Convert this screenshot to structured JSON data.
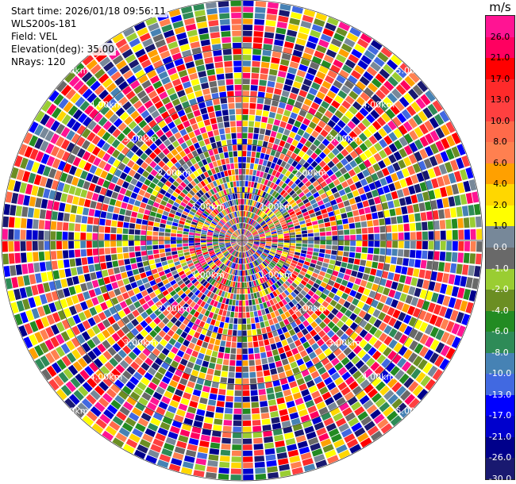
{
  "info": {
    "start_time": "Start time: 2026/01/18 09:56:11",
    "station": "WLS200s-181",
    "field": "Field: VEL",
    "elevation": "Elevation(deg): 35.00",
    "nrays": "NRays: 120"
  },
  "colorbar": {
    "unit": "m/s",
    "ticks": [
      "26.0",
      "21.0",
      "17.0",
      "13.0",
      "10.0",
      "8.0",
      "6.0",
      "4.0",
      "2.0",
      "1.0",
      "0.0",
      "-1.0",
      "-2.0",
      "-4.0",
      "-6.0",
      "-8.0",
      "-10.0",
      "-13.0",
      "-17.0",
      "-21.0",
      "-26.0",
      "-30.0"
    ],
    "colors": [
      "#ff1493",
      "#ff0060",
      "#ff0000",
      "#ff2a2a",
      "#ff4040",
      "#ff6a4a",
      "#ff8050",
      "#ffa000",
      "#ffd700",
      "#ffff00",
      "#778899",
      "#696969",
      "#9acd32",
      "#6b8e23",
      "#228b22",
      "#2e8b57",
      "#4682b4",
      "#4169e1",
      "#0000ff",
      "#0000cd",
      "#00008b",
      "#191970"
    ]
  },
  "chart_data": {
    "type": "heatmap",
    "subtype": "radar-ppi",
    "field": "VEL",
    "unit": "m/s",
    "elevation_deg": 35.0,
    "nrays": 120,
    "range_ring_labels": [
      "1.00km",
      "2.00km",
      "3.00km",
      "4.00km",
      "5.00km"
    ],
    "range_rings_km": [
      1,
      2,
      3,
      4,
      5
    ],
    "ring_labels_drawn_per_ring": 4,
    "max_range_km": 5.0,
    "velocity_range": [
      -30.0,
      26.0
    ],
    "ray_count": 120,
    "note_data": "Per-gate velocities appear as a noise-like multicolor pattern across all 120 rays; individual gate values are not readable."
  }
}
